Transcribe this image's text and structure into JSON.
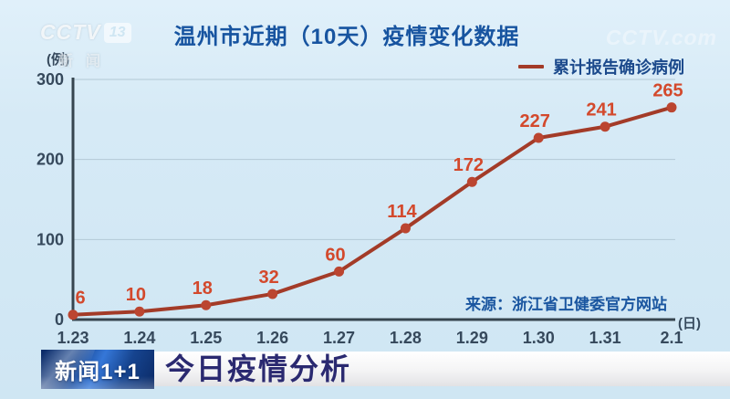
{
  "station": {
    "logo_text": "CCTV",
    "logo_channel": "13",
    "logo_sub": "新闻",
    "watermark": "CCTV.com"
  },
  "header": {
    "title": "温州市近期（10天）疫情变化数据"
  },
  "legend": {
    "label": "累计报告确诊病例"
  },
  "chart_data": {
    "type": "line",
    "title": "温州市近期（10天）疫情变化数据",
    "categories": [
      "1.23",
      "1.24",
      "1.25",
      "1.26",
      "1.27",
      "1.28",
      "1.29",
      "1.30",
      "1.31",
      "2.1"
    ],
    "series": [
      {
        "name": "累计报告确诊病例",
        "values": [
          6,
          10,
          18,
          32,
          60,
          114,
          172,
          227,
          241,
          265
        ]
      }
    ],
    "ylim": [
      0,
      300
    ],
    "yticks": [
      0,
      100,
      200,
      300
    ],
    "y_unit": "(例)",
    "x_unit": "(日)",
    "grid": true,
    "legend_position": "top-right",
    "line_color": "#a33b28",
    "marker_color": "#bb4530",
    "label_color": "#d3492c",
    "axis_color": "#36454f",
    "grid_color": "#b3c9d6"
  },
  "source": {
    "text": "来源：浙江省卫健委官方网站"
  },
  "banner": {
    "logo": "新闻1+1",
    "headline": "今日疫情分析"
  }
}
